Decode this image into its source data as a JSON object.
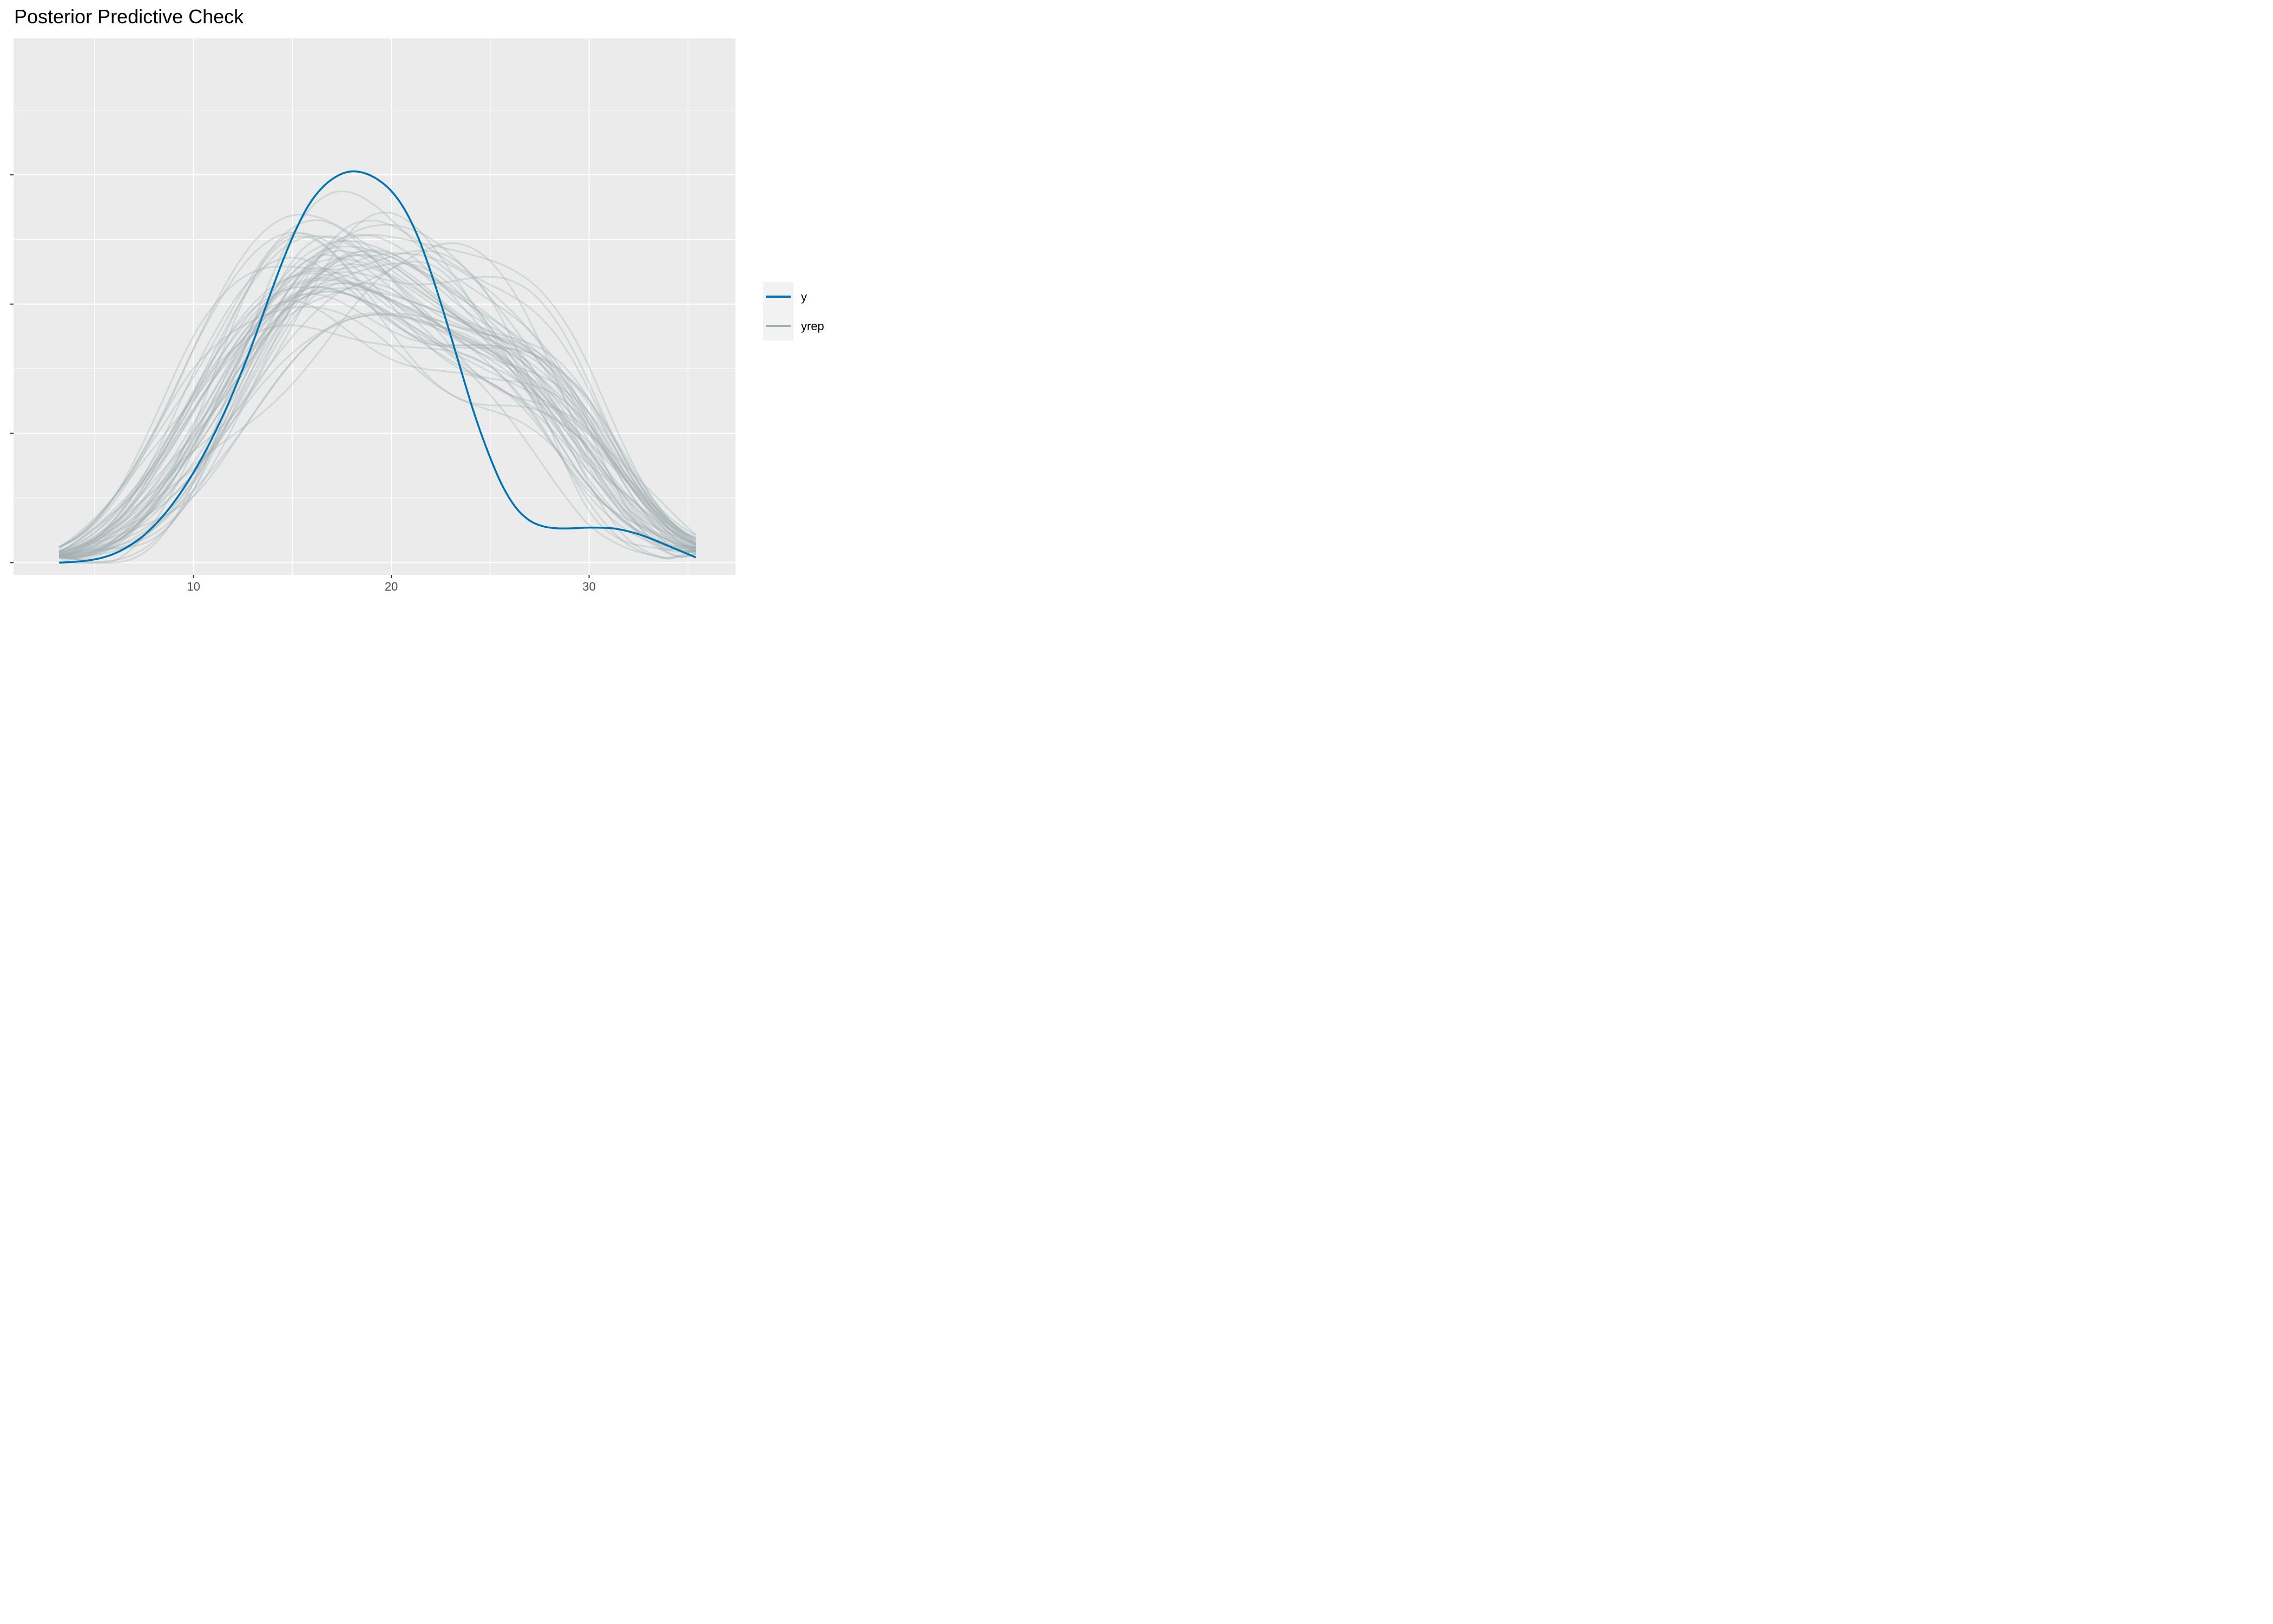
{
  "title": "Posterior Predictive Check",
  "chart_data": {
    "type": "line",
    "title": "Posterior Predictive Check",
    "xlabel": "",
    "ylabel": "",
    "xlim": [
      0.9,
      37.4
    ],
    "ylim": [
      -0.0019,
      0.0811
    ],
    "x_ticks": [
      10,
      20,
      30
    ],
    "y_ticks": [
      0,
      0.02,
      0.04,
      0.06
    ],
    "y_tick_labels_shown": false,
    "grid": true,
    "legend_position": "right",
    "x_grid": [
      3.2,
      3.9,
      4.6,
      5.3,
      6.0,
      6.7,
      7.4,
      8.1,
      8.8,
      9.5,
      10.2,
      10.9,
      11.6,
      12.3,
      13.0,
      13.7,
      14.4,
      15.1,
      15.8,
      16.5,
      17.2,
      17.9,
      18.6,
      19.3,
      20.0,
      20.7,
      21.4,
      22.1,
      22.8,
      23.5,
      24.2,
      24.9,
      25.6,
      26.3,
      27.0,
      27.7,
      28.4,
      29.1,
      29.8,
      30.5,
      31.2,
      31.9,
      32.6,
      33.3,
      34.0,
      34.7,
      35.4
    ],
    "series": [
      {
        "name": "y",
        "color": "#0072b2",
        "y": [
          0.0,
          0.0001,
          0.0003,
          0.0007,
          0.0014,
          0.0025,
          0.004,
          0.006,
          0.0085,
          0.0115,
          0.015,
          0.019,
          0.0235,
          0.0285,
          0.034,
          0.04,
          0.0458,
          0.051,
          0.0552,
          0.058,
          0.0597,
          0.0605,
          0.0603,
          0.0593,
          0.0575,
          0.0545,
          0.05,
          0.044,
          0.0372,
          0.03,
          0.023,
          0.017,
          0.012,
          0.0085,
          0.0065,
          0.0056,
          0.0053,
          0.0053,
          0.0054,
          0.0054,
          0.0053,
          0.0049,
          0.0043,
          0.0035,
          0.0026,
          0.0017,
          0.0008
        ]
      },
      {
        "name": "yrep",
        "color": "#a1b0b3",
        "y": [
          0.001,
          0.0015,
          0.0022,
          0.0032,
          0.0045,
          0.0062,
          0.0083,
          0.0108,
          0.0137,
          0.0169,
          0.0204,
          0.0241,
          0.0279,
          0.0316,
          0.0351,
          0.0382,
          0.0408,
          0.0428,
          0.0442,
          0.045,
          0.0452,
          0.045,
          0.0444,
          0.0436,
          0.0426,
          0.0416,
          0.0405,
          0.0394,
          0.0383,
          0.0372,
          0.0361,
          0.0349,
          0.0336,
          0.032,
          0.0301,
          0.0278,
          0.0251,
          0.0221,
          0.0189,
          0.0157,
          0.0126,
          0.0098,
          0.0074,
          0.0054,
          0.0039,
          0.0027,
          0.0018
        ]
      }
    ]
  },
  "legend": {
    "items": [
      {
        "label": "y",
        "color": "#0072b2"
      },
      {
        "label": "yrep",
        "color": "#a1b0b3"
      }
    ]
  }
}
